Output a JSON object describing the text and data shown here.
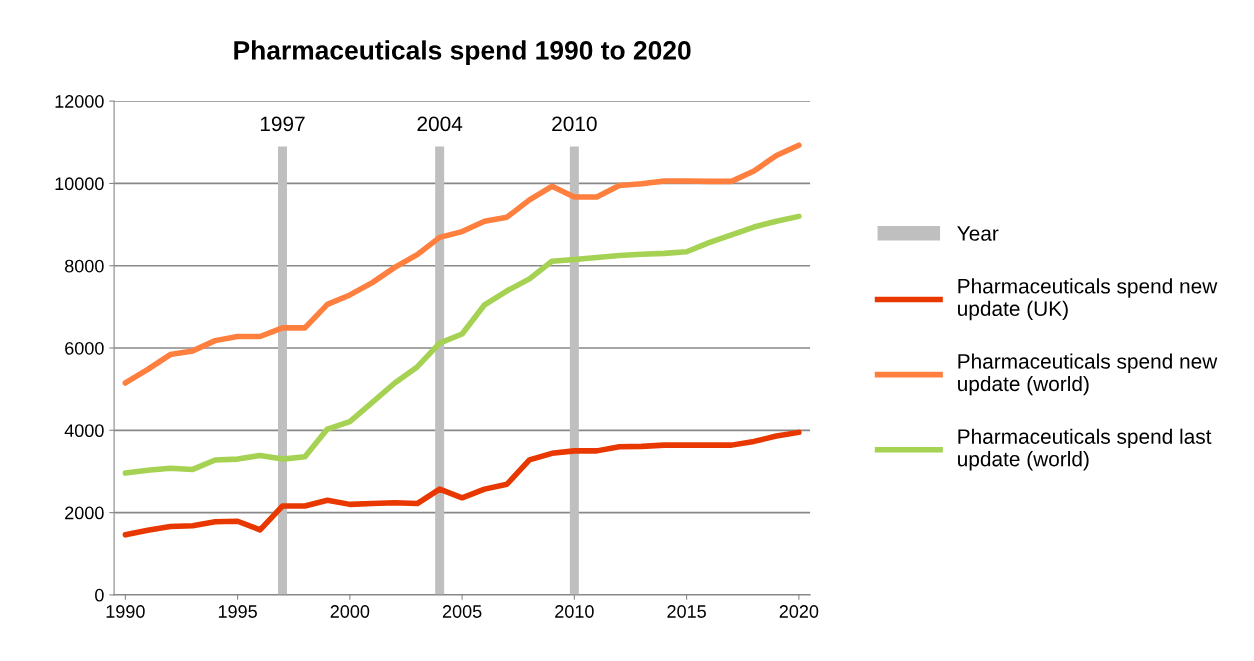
{
  "chart_data": {
    "type": "line",
    "title": "Pharmaceuticals spend 1990 to 2020",
    "x": [
      1990,
      1991,
      1992,
      1993,
      1994,
      1995,
      1996,
      1997,
      1998,
      1999,
      2000,
      2001,
      2002,
      2003,
      2004,
      2005,
      2006,
      2007,
      2008,
      2009,
      2010,
      2011,
      2012,
      2013,
      2014,
      2015,
      2016,
      2017,
      2018,
      2019,
      2020
    ],
    "series": [
      {
        "name": "Year",
        "type": "bar",
        "color": "#bfbfbf",
        "x": [
          1997,
          2004,
          2010
        ],
        "values": [
          10900,
          10900,
          10900
        ]
      },
      {
        "name": "Pharmaceuticals spend new update (UK)",
        "color": "#e83800",
        "values": [
          1460,
          1570,
          1660,
          1680,
          1780,
          1790,
          1580,
          2160,
          2160,
          2300,
          2200,
          2220,
          2240,
          2220,
          2570,
          2360,
          2570,
          2690,
          3280,
          3440,
          3500,
          3500,
          3600,
          3610,
          3640,
          3640,
          3640,
          3640,
          3730,
          3860,
          3950
        ]
      },
      {
        "name": "Pharmaceuticals spend new update (world)",
        "color": "#ff7f3f",
        "values": [
          5150,
          5480,
          5840,
          5930,
          6180,
          6280,
          6280,
          6490,
          6490,
          7060,
          7290,
          7590,
          7960,
          8270,
          8690,
          8830,
          9080,
          9180,
          9600,
          9930,
          9670,
          9670,
          9950,
          9990,
          10060,
          10060,
          10050,
          10050,
          10300,
          10680,
          10930
        ]
      },
      {
        "name": "Pharmaceuticals spend last update (world)",
        "color": "#a5d252",
        "values": [
          2960,
          3030,
          3080,
          3050,
          3280,
          3300,
          3390,
          3300,
          3360,
          4030,
          4210,
          4680,
          5150,
          5540,
          6120,
          6340,
          7050,
          7390,
          7680,
          8110,
          8150,
          8200,
          8250,
          8280,
          8300,
          8340,
          8560,
          8750,
          8940,
          9080,
          9200
        ]
      }
    ],
    "xlim": [
      1989.5,
      2020.5
    ],
    "xticks": [
      1990,
      1995,
      2000,
      2005,
      2010,
      2015,
      2020
    ],
    "ylim": [
      0,
      12000
    ],
    "yticks": [
      0,
      2000,
      4000,
      6000,
      8000,
      10000,
      12000
    ],
    "annotations": [
      {
        "text": "1997",
        "x": 1997,
        "y": 10900
      },
      {
        "text": "2004",
        "x": 2004,
        "y": 10900
      },
      {
        "text": "2010",
        "x": 2010,
        "y": 10900
      }
    ],
    "grid": "y",
    "legend": "right",
    "line_style": "solid",
    "marker": "none"
  }
}
